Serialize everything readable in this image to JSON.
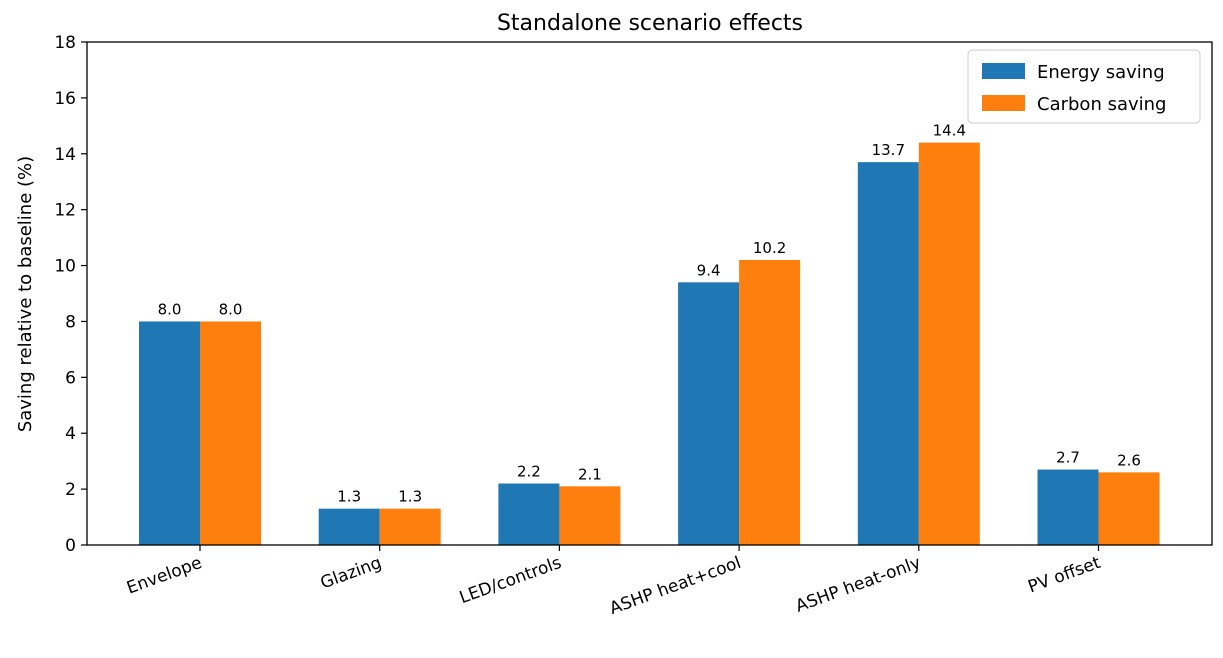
{
  "chart_data": {
    "type": "bar",
    "title": "Standalone scenario effects",
    "xlabel": "",
    "ylabel": "Saving relative to baseline (%)",
    "ylim": [
      0,
      18
    ],
    "yticks": [
      "0",
      "2",
      "4",
      "6",
      "8",
      "10",
      "12",
      "14",
      "16",
      "18"
    ],
    "categories": [
      "Envelope",
      "Glazing",
      "LED/controls",
      "ASHP heat+cool",
      "ASHP heat-only",
      "PV offset"
    ],
    "series": [
      {
        "name": "Energy saving",
        "color": "#1f77b4",
        "values": [
          8.0,
          1.3,
          2.2,
          9.4,
          13.7,
          2.7
        ],
        "labels": [
          "8.0",
          "1.3",
          "2.2",
          "9.4",
          "13.7",
          "2.7"
        ]
      },
      {
        "name": "Carbon saving",
        "color": "#ff7f0e",
        "values": [
          8.0,
          1.3,
          2.1,
          10.2,
          14.4,
          2.6
        ],
        "labels": [
          "8.0",
          "1.3",
          "2.1",
          "10.2",
          "14.4",
          "2.6"
        ]
      }
    ],
    "grid": false,
    "legend_position": "top-right",
    "category_label_rotation": "angled"
  }
}
